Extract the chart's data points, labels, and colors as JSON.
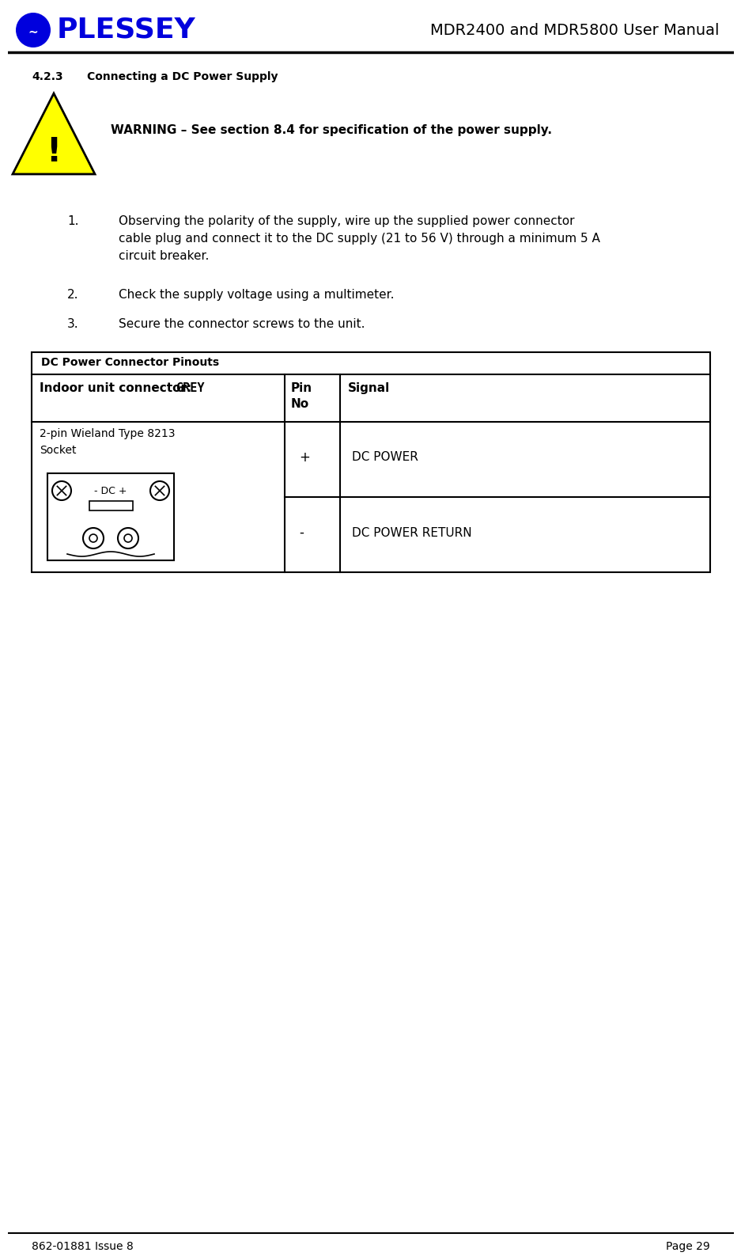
{
  "page_title": "MDR2400 and MDR5800 User Manual",
  "section_num": "4.2.3",
  "section_title": "Connecting a DC Power Supply",
  "warning_text": "WARNING – See section 8.4 for specification of the power supply.",
  "step1": "Observing the polarity of the supply, wire up the supplied power connector\ncable plug and connect it to the DC supply (21 to 56 V) through a minimum 5 A\ncircuit breaker.",
  "step2": "Check the supply voltage using a multimeter.",
  "step3": "Secure the connector screws to the unit.",
  "table_title": "DC Power Connector Pinouts",
  "col1_header_normal": "Indoor unit connector: ",
  "col1_header_bold": "GREY",
  "col2_header": "Pin\nNo",
  "col3_header": "Signal",
  "row_connector_text": "2-pin Wieland Type 8213\nSocket",
  "row1_pin": "+",
  "row1_signal": "DC POWER",
  "row2_pin": "-",
  "row2_signal": "DC POWER RETURN",
  "footer_left": "862-01881 Issue 8",
  "footer_right": "Page 29",
  "bg_color": "#ffffff",
  "plessey_blue": "#0000dd",
  "warning_yellow": "#ffff00",
  "black": "#000000"
}
